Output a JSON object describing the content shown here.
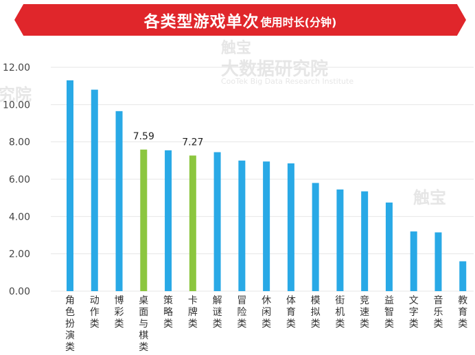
{
  "title": {
    "main": "各类型游戏单次",
    "sub": "使用时长(分钟)"
  },
  "watermark": {
    "logo_line1": "触宝",
    "logo_line2": "大数据研究院",
    "english": "CooTek Big Data Research Institute",
    "fragment": "究院"
  },
  "colors": {
    "banner": "#e0262b",
    "bar_default": "#29a9e6",
    "bar_highlight": "#8cc63f",
    "grid": "#e6e6e6"
  },
  "chart_data": {
    "type": "bar",
    "title": "各类型游戏单次使用时长(分钟)",
    "xlabel": "",
    "ylabel": "",
    "ylim": [
      0,
      12
    ],
    "yticks": [
      "0.00",
      "2.00",
      "4.00",
      "6.00",
      "8.00",
      "10.00",
      "12.00"
    ],
    "grid": true,
    "categories": [
      "角色扮演类",
      "动作类",
      "博彩类",
      "桌面与棋类",
      "策略类",
      "卡牌类",
      "解谜类",
      "冒险类",
      "休闲类",
      "体育类",
      "模拟类",
      "街机类",
      "竞速类",
      "益智类",
      "文字类",
      "音乐类",
      "教育类"
    ],
    "values": [
      11.3,
      10.8,
      9.65,
      7.59,
      7.55,
      7.27,
      7.45,
      7.0,
      6.95,
      6.85,
      5.8,
      5.45,
      5.35,
      4.75,
      3.2,
      3.15,
      1.6
    ],
    "highlight": [
      false,
      false,
      false,
      true,
      false,
      true,
      false,
      false,
      false,
      false,
      false,
      false,
      false,
      false,
      false,
      false,
      false
    ],
    "data_labels": [
      "",
      "",
      "",
      "7.59",
      "",
      "7.27",
      "",
      "",
      "",
      "",
      "",
      "",
      "",
      "",
      "",
      "",
      ""
    ]
  }
}
